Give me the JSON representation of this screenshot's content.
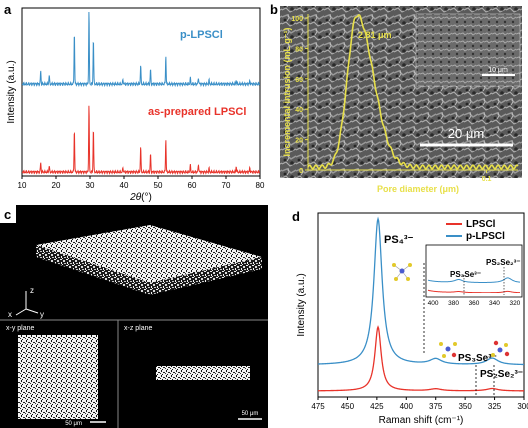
{
  "panel_labels": {
    "a": "a",
    "b": "b",
    "c": "c",
    "d": "d"
  },
  "chart_data": [
    {
      "type": "line",
      "panel": "a",
      "xlabel_prefix": "2θ",
      "xlabel_unit": "(°)",
      "ylabel": "Intensity (a.u.)",
      "xlim": [
        10,
        80
      ],
      "xticks": [
        10,
        20,
        30,
        40,
        50,
        60,
        70,
        80
      ],
      "series": [
        {
          "name": "p-LPSCl",
          "color": "#3a8fc7",
          "peaks": [
            [
              15.5,
              0.18
            ],
            [
              18.0,
              0.12
            ],
            [
              25.4,
              0.7
            ],
            [
              29.7,
              1.0
            ],
            [
              31.0,
              0.62
            ],
            [
              39.7,
              0.06
            ],
            [
              44.9,
              0.26
            ],
            [
              47.8,
              0.2
            ],
            [
              52.3,
              0.38
            ],
            [
              59.5,
              0.08
            ],
            [
              61.9,
              0.09
            ],
            [
              65.0,
              0.05
            ],
            [
              73.0,
              0.05
            ],
            [
              77.0,
              0.04
            ]
          ]
        },
        {
          "name": "as-prepared LPSCl",
          "color": "#e8332a",
          "peaks": [
            [
              15.5,
              0.14
            ],
            [
              18.0,
              0.09
            ],
            [
              25.4,
              0.62
            ],
            [
              29.7,
              1.0
            ],
            [
              31.0,
              0.65
            ],
            [
              39.7,
              0.06
            ],
            [
              44.9,
              0.38
            ],
            [
              47.8,
              0.27
            ],
            [
              52.3,
              0.48
            ],
            [
              59.5,
              0.1
            ],
            [
              61.9,
              0.12
            ],
            [
              65.0,
              0.05
            ],
            [
              73.0,
              0.08
            ],
            [
              77.0,
              0.06
            ]
          ]
        }
      ]
    },
    {
      "type": "line",
      "panel": "b",
      "xlabel": "Pore diameter (μm)",
      "ylabel": "Incremental intrusion (mL g⁻¹)",
      "xscale": "log",
      "xlim": [
        0.01,
        0.15
      ],
      "ylim": [
        0,
        100
      ],
      "ytick_labels": [
        "0",
        "20",
        "40",
        "60",
        "80",
        "100"
      ],
      "xtick_labels": [
        "0.1"
      ],
      "peak_annotation": "2.81 μm",
      "scale_bar_main": "20 μm",
      "scale_bar_inset": "10 μm",
      "color": "#e8e04a"
    },
    {
      "type": "line",
      "panel": "d",
      "xlabel": "Raman shift (cm⁻¹)",
      "ylabel": "Intensity (a.u.)",
      "xlim": [
        475,
        300
      ],
      "xticks": [
        475,
        450,
        425,
        400,
        375,
        350,
        325,
        300
      ],
      "series": [
        {
          "name": "LPSCl",
          "color": "#e8332a"
        },
        {
          "name": "p-LPSCl",
          "color": "#3a8fc7"
        }
      ],
      "annotations": {
        "ps4": "PS₄³⁻",
        "ps3se": "PS₃Se³⁻",
        "ps2se2": "PS₂Se₂³⁻"
      },
      "inset_xticks": [
        400,
        380,
        360,
        340,
        320
      ],
      "inset_labels": {
        "ps3se": "PS₃Se³⁻",
        "ps2se2": "PS₂Se₂³⁻"
      }
    }
  ],
  "panel_c": {
    "axes": {
      "x": "x",
      "y": "y",
      "z": "z"
    },
    "xy_label": "x-y plane",
    "xz_label": "x-z plane",
    "scale_xy": "50 μm",
    "scale_xz": "50 μm"
  }
}
